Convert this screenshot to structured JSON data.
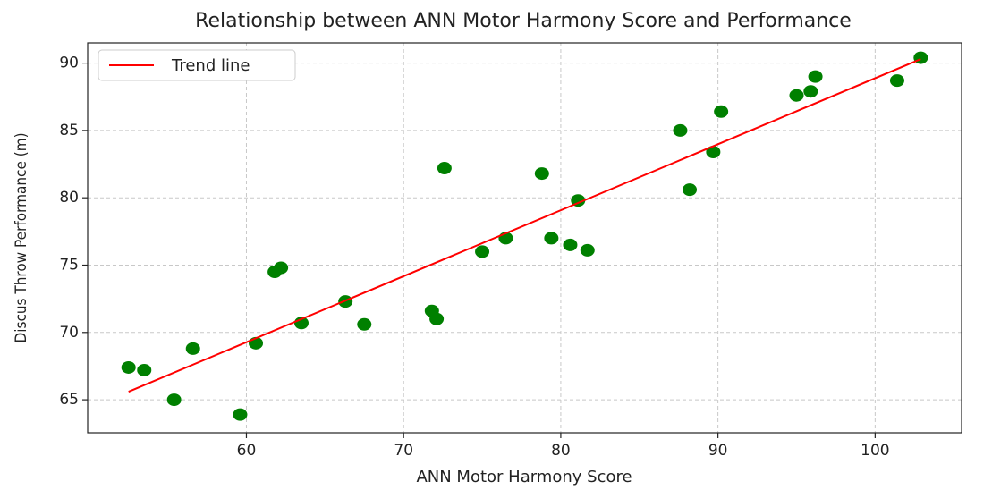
{
  "chart_data": {
    "type": "scatter",
    "title": "Relationship between ANN Motor Harmony Score and Performance",
    "x_label": "ANN Motor Harmony Score",
    "y_label": "Discus Throw Performance (m)",
    "x": [
      52.5,
      53.5,
      55.4,
      56.6,
      59.6,
      60.6,
      61.8,
      62.2,
      63.5,
      66.3,
      67.5,
      71.8,
      72.1,
      72.6,
      75.0,
      76.5,
      78.8,
      79.4,
      80.6,
      81.1,
      81.7,
      87.6,
      88.2,
      89.7,
      90.2,
      95.0,
      95.9,
      96.2,
      101.4,
      102.9
    ],
    "values": [
      67.4,
      67.2,
      65.0,
      68.8,
      63.9,
      69.2,
      74.5,
      74.8,
      70.7,
      72.3,
      70.6,
      71.6,
      71.0,
      82.2,
      76.0,
      77.0,
      81.8,
      77.0,
      76.5,
      79.8,
      76.1,
      85.0,
      80.6,
      83.4,
      86.4,
      87.6,
      87.9,
      89.0,
      88.7,
      90.4
    ],
    "color": "green",
    "trend": {
      "name": "Trend line",
      "color": "red",
      "x": [
        52.5,
        102.9
      ],
      "values": [
        65.6,
        90.3
      ]
    },
    "xlim": [
      49.9,
      105.5
    ],
    "ylim": [
      62.55,
      91.5
    ],
    "xticks": [
      60,
      70,
      80,
      90,
      100
    ],
    "yticks": [
      65,
      70,
      75,
      80,
      85,
      90
    ],
    "grid": true,
    "legend": "upper-left"
  }
}
